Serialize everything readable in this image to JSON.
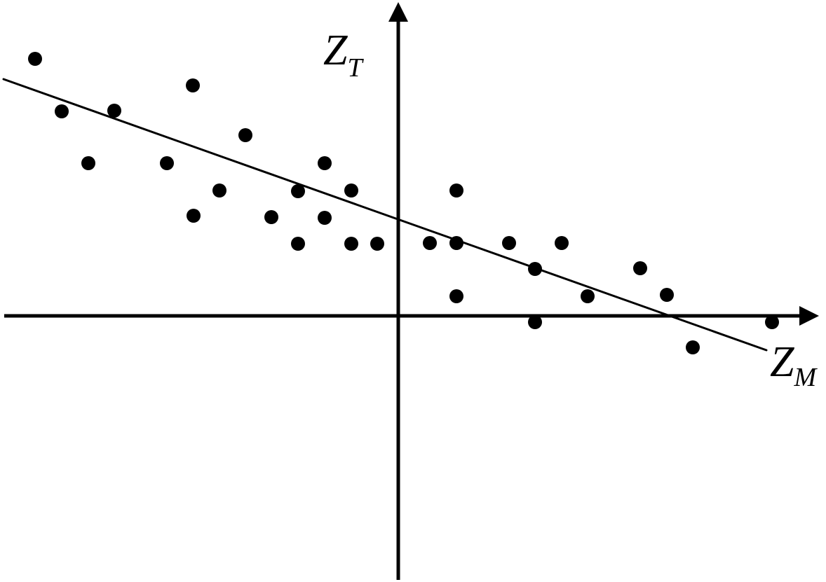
{
  "colors": {
    "ink": "#000000",
    "background": "#ffffff"
  },
  "chart_data": {
    "type": "scatter",
    "title": "",
    "xlabel": "Z_M",
    "ylabel": "Z_T",
    "xlabel_base": "Z",
    "xlabel_sub": "M",
    "ylabel_base": "Z",
    "ylabel_sub": "T",
    "grid": false,
    "legend": false,
    "axes": {
      "x": {
        "min": -5.6,
        "max": 6.0,
        "ticks": "none",
        "arrow": "right"
      },
      "y": {
        "min": -3.8,
        "max": 4.5,
        "ticks": "none",
        "arrow": "up"
      }
    },
    "marker": {
      "shape": "filled-circle",
      "color": "#000000",
      "radius_px": 10
    },
    "points": [
      [
        -5.18,
        3.67
      ],
      [
        -4.8,
        2.92
      ],
      [
        -4.42,
        2.18
      ],
      [
        -4.05,
        2.93
      ],
      [
        -3.3,
        2.18
      ],
      [
        -2.93,
        3.29
      ],
      [
        -2.92,
        1.43
      ],
      [
        -2.55,
        1.79
      ],
      [
        -2.18,
        2.58
      ],
      [
        -1.81,
        1.41
      ],
      [
        -1.43,
        1.78
      ],
      [
        -1.43,
        1.03
      ],
      [
        -1.05,
        2.18
      ],
      [
        -1.05,
        1.4
      ],
      [
        -0.67,
        1.79
      ],
      [
        -0.67,
        1.03
      ],
      [
        -0.3,
        1.03
      ],
      [
        0.45,
        1.04
      ],
      [
        0.83,
        1.79
      ],
      [
        0.83,
        1.04
      ],
      [
        0.83,
        0.28
      ],
      [
        1.58,
        1.04
      ],
      [
        1.95,
        0.67
      ],
      [
        1.95,
        -0.09
      ],
      [
        2.33,
        1.04
      ],
      [
        2.7,
        0.28
      ],
      [
        3.45,
        0.68
      ],
      [
        3.83,
        0.3
      ],
      [
        4.2,
        -0.45
      ],
      [
        5.33,
        -0.09
      ]
    ],
    "regression_line": {
      "x1": -5.63,
      "y1": 3.38,
      "x2": 5.25,
      "y2": -0.49,
      "slope": -0.36,
      "intercept": 1.38
    }
  }
}
